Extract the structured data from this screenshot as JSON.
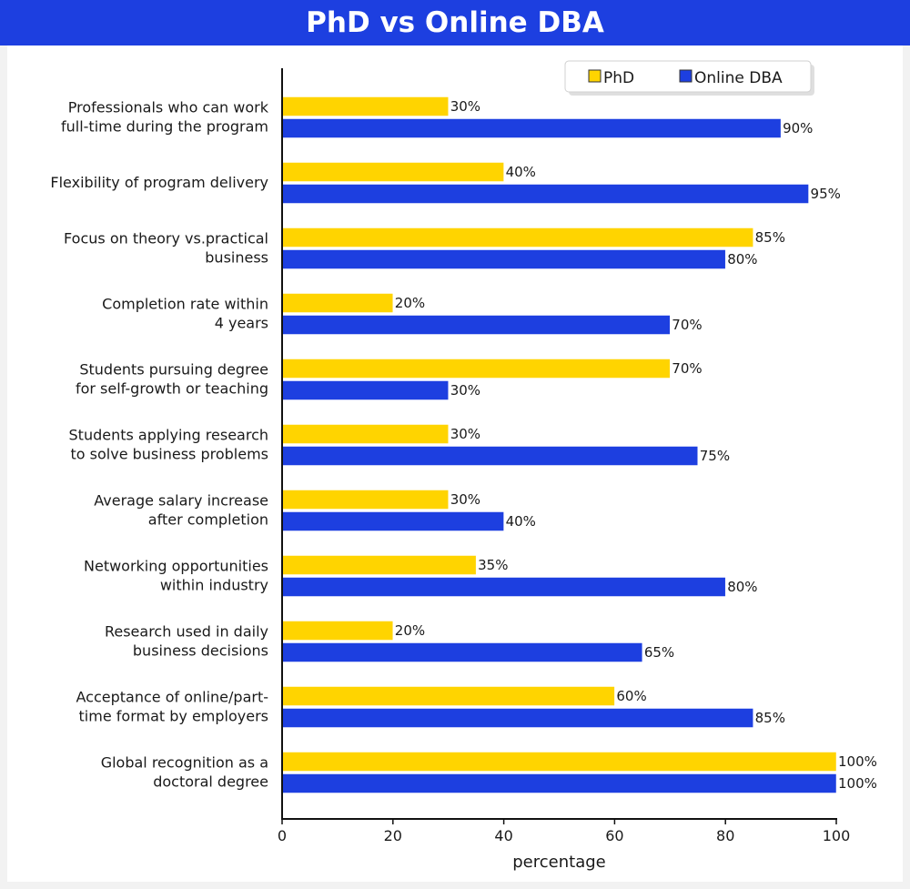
{
  "title": "PhD vs Online DBA",
  "colors": {
    "phd": "#ffd400",
    "dba": "#1d3fe0",
    "header": "#1d3fe0"
  },
  "chart_data": {
    "type": "bar",
    "orientation": "horizontal",
    "title": "PhD vs Online DBA",
    "xlabel": "percentage",
    "ylabel": "",
    "xlim": [
      0,
      100
    ],
    "xticks": [
      0,
      20,
      40,
      60,
      80,
      100
    ],
    "legend_position": "top-right",
    "grid": false,
    "categories": [
      [
        "Professionals who can work",
        "full-time during the program"
      ],
      [
        "Flexibility of program delivery"
      ],
      [
        "Focus on theory vs.practical",
        "business"
      ],
      [
        "Completion rate within",
        "4 years"
      ],
      [
        "Students pursuing degree",
        "for self-growth or teaching"
      ],
      [
        "Students applying research",
        "to solve business problems"
      ],
      [
        "Average salary increase",
        "after completion"
      ],
      [
        "Networking opportunities",
        "within industry"
      ],
      [
        "Research used in daily",
        "business decisions"
      ],
      [
        "Acceptance of online/part-",
        "time format by employers"
      ],
      [
        "Global recognition as a",
        "doctoral degree"
      ]
    ],
    "series": [
      {
        "name": "PhD",
        "color": "#ffd400",
        "values": [
          30,
          40,
          85,
          20,
          70,
          30,
          30,
          35,
          20,
          60,
          100
        ]
      },
      {
        "name": "Online DBA",
        "color": "#1d3fe0",
        "values": [
          90,
          95,
          80,
          70,
          30,
          75,
          40,
          80,
          65,
          85,
          100
        ]
      }
    ],
    "value_suffix": "%"
  }
}
